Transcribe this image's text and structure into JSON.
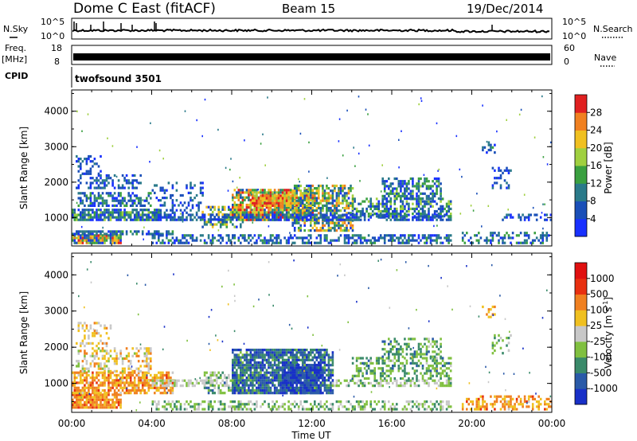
{
  "header": {
    "title": "Dome C East (fitACF)",
    "beam": "Beam 15",
    "date": "19/Dec/2014"
  },
  "top_panels": {
    "nsky_label": "N.Sky",
    "nsky_ticks": [
      "10^5",
      "10^0"
    ],
    "nsearch_label": "N.Search",
    "nsearch_ticks": [
      "10^5",
      "10^0"
    ],
    "freq_label": "Freq.",
    "freq_unit": "[MHz]",
    "freq_ticks": [
      "18",
      "8"
    ],
    "nave_label": "Nave",
    "nave_ticks": [
      "60",
      "0"
    ],
    "cpid_label": "CPID",
    "cpid_value": "twofsound 3501"
  },
  "chart_data": [
    {
      "type": "heatmap",
      "name": "power",
      "ylabel": "Slant Range [km]",
      "yticks": [
        "1000",
        "2000",
        "3000",
        "4000"
      ],
      "ylim": [
        200,
        4600
      ],
      "xlim_hours": [
        0,
        24
      ],
      "colorbar": {
        "label": "Power [dB]",
        "ticks": [
          "4",
          "8",
          "12",
          "16",
          "20",
          "24",
          "28"
        ],
        "colors": [
          "#1830ff",
          "#1a4fb8",
          "#2a7a8a",
          "#3aa040",
          "#a0d040",
          "#f0c020",
          "#f08020",
          "#e02020"
        ]
      }
    },
    {
      "type": "heatmap",
      "name": "velocity",
      "ylabel": "Slant Range [km]",
      "yticks": [
        "1000",
        "2000",
        "3000",
        "4000"
      ],
      "ylim": [
        200,
        4600
      ],
      "xlim_hours": [
        0,
        24
      ],
      "xlabel": "Time UT",
      "xticks": [
        "00:00",
        "04:00",
        "08:00",
        "12:00",
        "16:00",
        "20:00",
        "00:00"
      ],
      "colorbar": {
        "label": "Velocity [m s",
        "label_sup": "-1",
        "label_end": "]",
        "ticks": [
          "1000",
          "500",
          "100",
          "25",
          "-25",
          "-100",
          "-500",
          "-1000"
        ],
        "colors": [
          "#1830c8",
          "#2a5aa8",
          "#3a8a6a",
          "#80c040",
          "#c8c8c8",
          "#f0c020",
          "#f08020",
          "#e83010",
          "#e01010"
        ]
      }
    }
  ]
}
